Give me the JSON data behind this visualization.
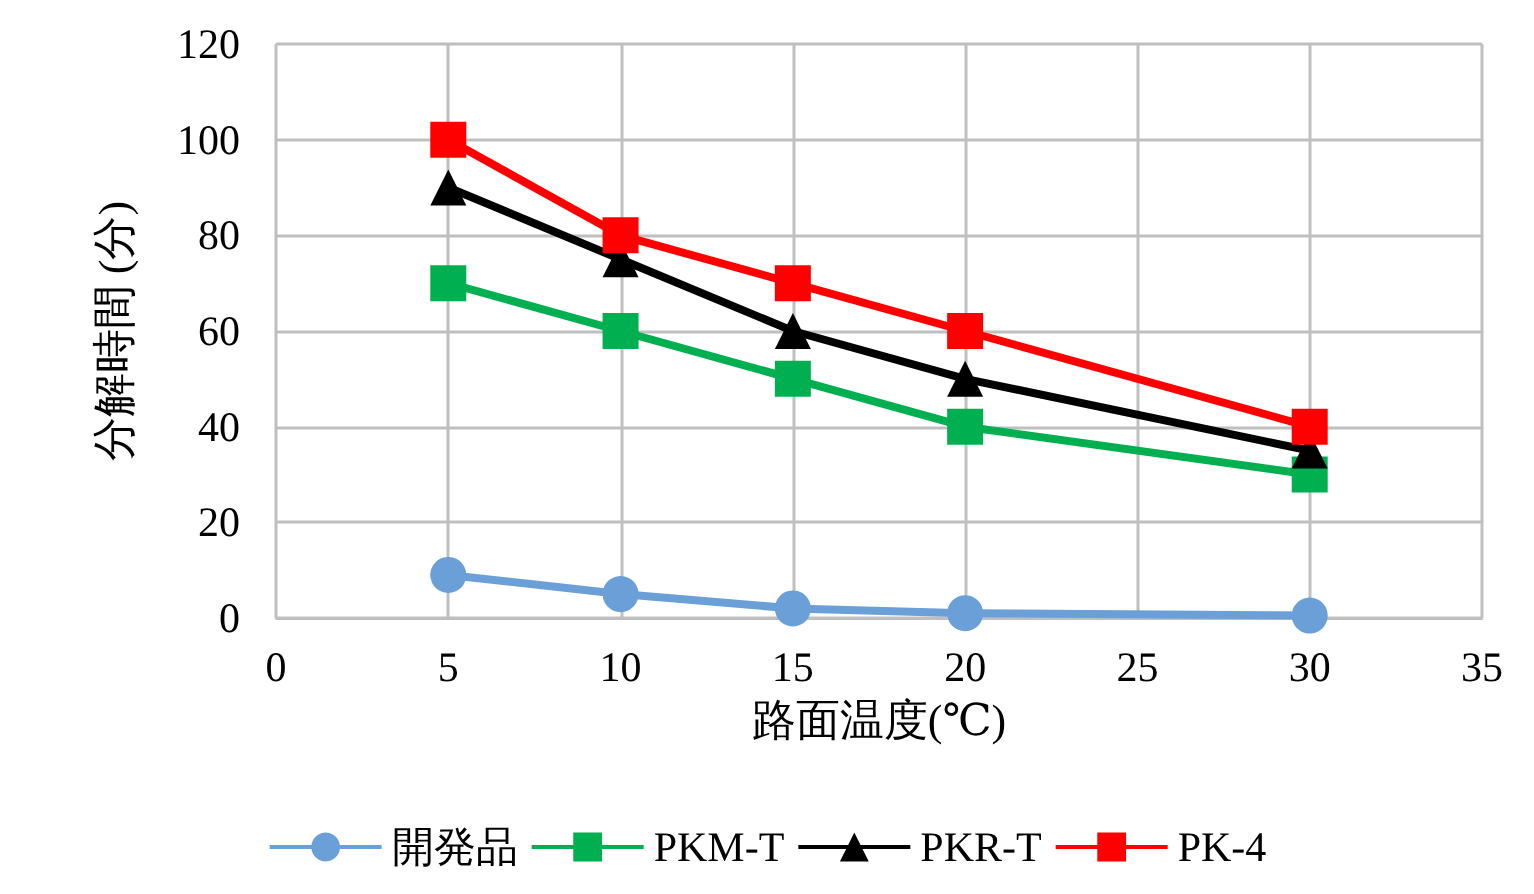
{
  "chart_data": {
    "type": "line",
    "xlabel": "路面温度(℃)",
    "ylabel": "分解時間 (分)",
    "x": [
      5,
      10,
      15,
      20,
      30
    ],
    "series": [
      {
        "name": "開発品",
        "color": "#6a9fd8",
        "marker": "circle",
        "values": [
          9,
          5,
          2,
          1,
          0.5
        ]
      },
      {
        "name": "PKM-T",
        "color": "#00b050",
        "marker": "square",
        "values": [
          70,
          60,
          50,
          40,
          30
        ]
      },
      {
        "name": "PKR-T",
        "color": "#000000",
        "marker": "triangle",
        "values": [
          90,
          75,
          60,
          50,
          35
        ]
      },
      {
        "name": "PK-4",
        "color": "#ff0000",
        "marker": "square",
        "values": [
          100,
          80,
          70,
          60,
          40
        ]
      }
    ],
    "xlim": [
      0,
      35
    ],
    "xticks": [
      0,
      5,
      10,
      15,
      20,
      25,
      30,
      35
    ],
    "ylim": [
      0,
      120
    ],
    "yticks": [
      0,
      20,
      40,
      60,
      80,
      100,
      120
    ],
    "grid": true,
    "legend": "bottom",
    "line_style": "solid"
  }
}
